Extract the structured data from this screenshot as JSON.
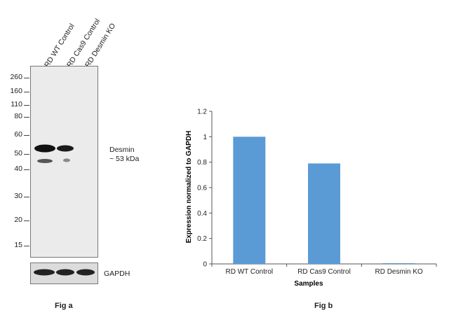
{
  "fig_a": {
    "lanes": [
      "RD WT Control",
      "RD Cas9 Control",
      "RD Desmin KO"
    ],
    "markers": [
      "260",
      "160",
      "110",
      "80",
      "60",
      "50",
      "40",
      "30",
      "20",
      "15"
    ],
    "band_label_line1": "Desmin",
    "band_label_line2": "~ 53 kDa",
    "loading_control": "GAPDH",
    "caption": "Fig a"
  },
  "fig_b": {
    "caption": "Fig b"
  },
  "chart_data": {
    "type": "bar",
    "categories": [
      "RD WT Control",
      "RD Cas9 Control",
      "RD Desmin KO"
    ],
    "values": [
      1.0,
      0.79,
      0.0
    ],
    "xlabel": "Samples",
    "ylabel": "Expression normalized to GAPDH",
    "ylim": [
      0,
      1.2
    ],
    "yticks": [
      "0",
      "0.2",
      "0.4",
      "0.6",
      "0.8",
      "1",
      "1.2"
    ],
    "bar_color": "#5b9bd5",
    "grid": false
  }
}
